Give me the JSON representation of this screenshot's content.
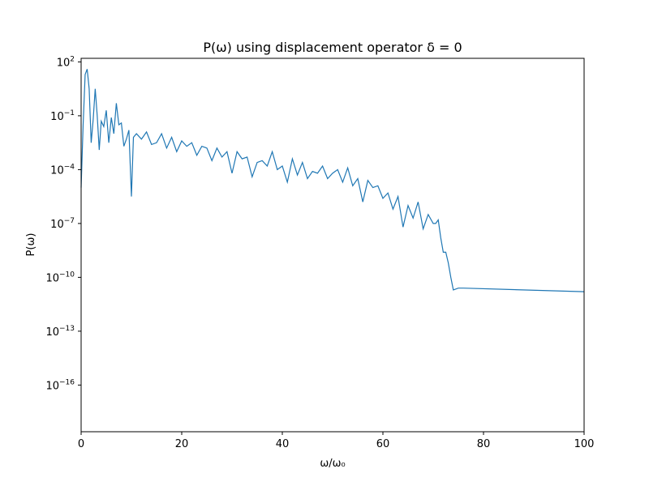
{
  "chart_data": {
    "type": "line",
    "title": "P(ω) using displacement operator δ = 0",
    "xlabel": "ω/ω₀",
    "ylabel": "P(ω)",
    "xlim": [
      0,
      100
    ],
    "ylim_log10": [
      -18.6,
      2.2
    ],
    "yscale": "log",
    "grid": false,
    "line_color": "#1f77b4",
    "x_ticks": [
      0,
      20,
      40,
      60,
      80,
      100
    ],
    "x_tick_labels": [
      "0",
      "20",
      "40",
      "60",
      "80",
      "100"
    ],
    "y_ticks_log10": [
      2,
      -1,
      -4,
      -7,
      -10,
      -13,
      -16
    ],
    "y_tick_base": "10",
    "y_tick_exponents": [
      "2",
      "−1",
      "−4",
      "−7",
      "−10",
      "−13",
      "−16"
    ],
    "series": [
      {
        "x": [
          0,
          0.4,
          0.8,
          1.2,
          1.6,
          2.0,
          2.4,
          2.8,
          3.2,
          3.6,
          4.0,
          4.5,
          5.0,
          5.5,
          6.0,
          6.5,
          7.0,
          7.5,
          8.0,
          8.5,
          9.0,
          9.5,
          10.0,
          10.4,
          11.0,
          12.0,
          13.0,
          14.0,
          15.0,
          16.0,
          17.0,
          18.0,
          19.0,
          20.0,
          21.0,
          22.0,
          23.0,
          24.0,
          25.0,
          26.0,
          27.0,
          28.0,
          29.0,
          30.0,
          31.0,
          32.0,
          33.0,
          34.0,
          35.0,
          36.0,
          37.0,
          38.0,
          39.0,
          40.0,
          41.0,
          42.0,
          43.0,
          44.0,
          45.0,
          46.0,
          47.0,
          48.0,
          49.0,
          50.0,
          51.0,
          52.0,
          53.0,
          54.0,
          55.0,
          56.0,
          57.0,
          58.0,
          59.0,
          60.0,
          61.0,
          62.0,
          63.0,
          64.0,
          65.0,
          66.0,
          67.0,
          68.0,
          69.0,
          70.0,
          70.5,
          71.0,
          71.5,
          72.0,
          72.5,
          73.0,
          73.5,
          74.0,
          75.0,
          76.0,
          100
        ],
        "y_log10": [
          -5.0,
          -1.5,
          1.3,
          1.6,
          0.5,
          -2.5,
          -1.2,
          0.5,
          -1.0,
          -2.9,
          -1.3,
          -1.6,
          -0.7,
          -2.5,
          -1.1,
          -2.0,
          -0.3,
          -1.5,
          -1.4,
          -2.7,
          -2.3,
          -1.8,
          -5.5,
          -2.2,
          -2.0,
          -2.3,
          -1.9,
          -2.6,
          -2.5,
          -2.0,
          -2.8,
          -2.2,
          -3.0,
          -2.4,
          -2.7,
          -2.5,
          -3.2,
          -2.7,
          -2.8,
          -3.5,
          -2.8,
          -3.3,
          -3.0,
          -4.2,
          -3.0,
          -3.4,
          -3.3,
          -4.4,
          -3.6,
          -3.5,
          -3.8,
          -3.0,
          -4.0,
          -3.8,
          -4.7,
          -3.4,
          -4.3,
          -3.6,
          -4.5,
          -4.1,
          -4.2,
          -3.8,
          -4.5,
          -4.2,
          -4.0,
          -4.7,
          -3.9,
          -4.9,
          -4.5,
          -5.8,
          -4.6,
          -5.0,
          -4.9,
          -5.6,
          -5.3,
          -6.2,
          -5.5,
          -7.2,
          -6.0,
          -6.7,
          -5.8,
          -7.3,
          -6.5,
          -7.0,
          -7.0,
          -6.8,
          -7.8,
          -8.6,
          -8.6,
          -9.2,
          -10.0,
          -10.7,
          -10.6,
          -10.6,
          -10.8
        ]
      }
    ]
  }
}
